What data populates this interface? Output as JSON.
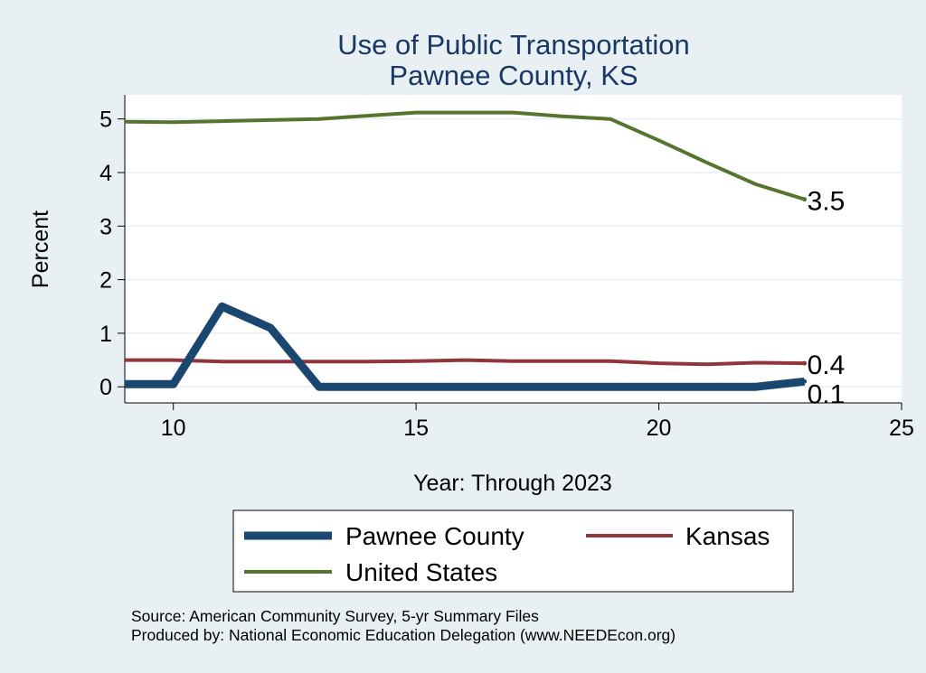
{
  "chart_data": {
    "type": "line",
    "title_lines": [
      "Use of Public Transportation",
      "Pawnee County, KS"
    ],
    "xlabel": "Year: Through 2023",
    "ylabel": "Percent",
    "xlim": [
      9,
      25
    ],
    "ylim": [
      -0.3,
      5.45
    ],
    "xticks": [
      10,
      15,
      20,
      25
    ],
    "yticks": [
      0,
      1,
      2,
      3,
      4,
      5
    ],
    "grid": true,
    "legend_position": "bottom",
    "series": [
      {
        "name": "Pawnee County",
        "color": "#1a476f",
        "x": [
          9,
          10,
          11,
          12,
          13,
          14,
          15,
          16,
          17,
          18,
          19,
          20,
          21,
          22,
          23
        ],
        "y": [
          0.05,
          0.05,
          1.5,
          1.1,
          0.0,
          0.0,
          0.0,
          0.0,
          0.0,
          0.0,
          0.0,
          0.0,
          0.0,
          0.0,
          0.1
        ],
        "end_label": "0.1"
      },
      {
        "name": "Kansas",
        "color": "#90353b",
        "x": [
          9,
          10,
          11,
          12,
          13,
          14,
          15,
          16,
          17,
          18,
          19,
          20,
          21,
          22,
          23
        ],
        "y": [
          0.5,
          0.5,
          0.47,
          0.47,
          0.47,
          0.47,
          0.48,
          0.5,
          0.48,
          0.48,
          0.48,
          0.44,
          0.42,
          0.45,
          0.44
        ],
        "end_label": "0.4"
      },
      {
        "name": "United States",
        "color": "#55752f",
        "x": [
          9,
          10,
          11,
          12,
          13,
          14,
          15,
          16,
          17,
          18,
          19,
          20,
          21,
          22,
          23
        ],
        "y": [
          4.95,
          4.94,
          4.96,
          4.98,
          5.0,
          5.06,
          5.12,
          5.12,
          5.12,
          5.05,
          5.0,
          4.6,
          4.18,
          3.78,
          3.5
        ],
        "end_label": "3.5"
      }
    ]
  },
  "footer": {
    "source": "Source: American Community Survey, 5-yr Summary Files",
    "produced_by": "Produced by: National Economic Education Delegation (www.NEEDEcon.org)"
  }
}
